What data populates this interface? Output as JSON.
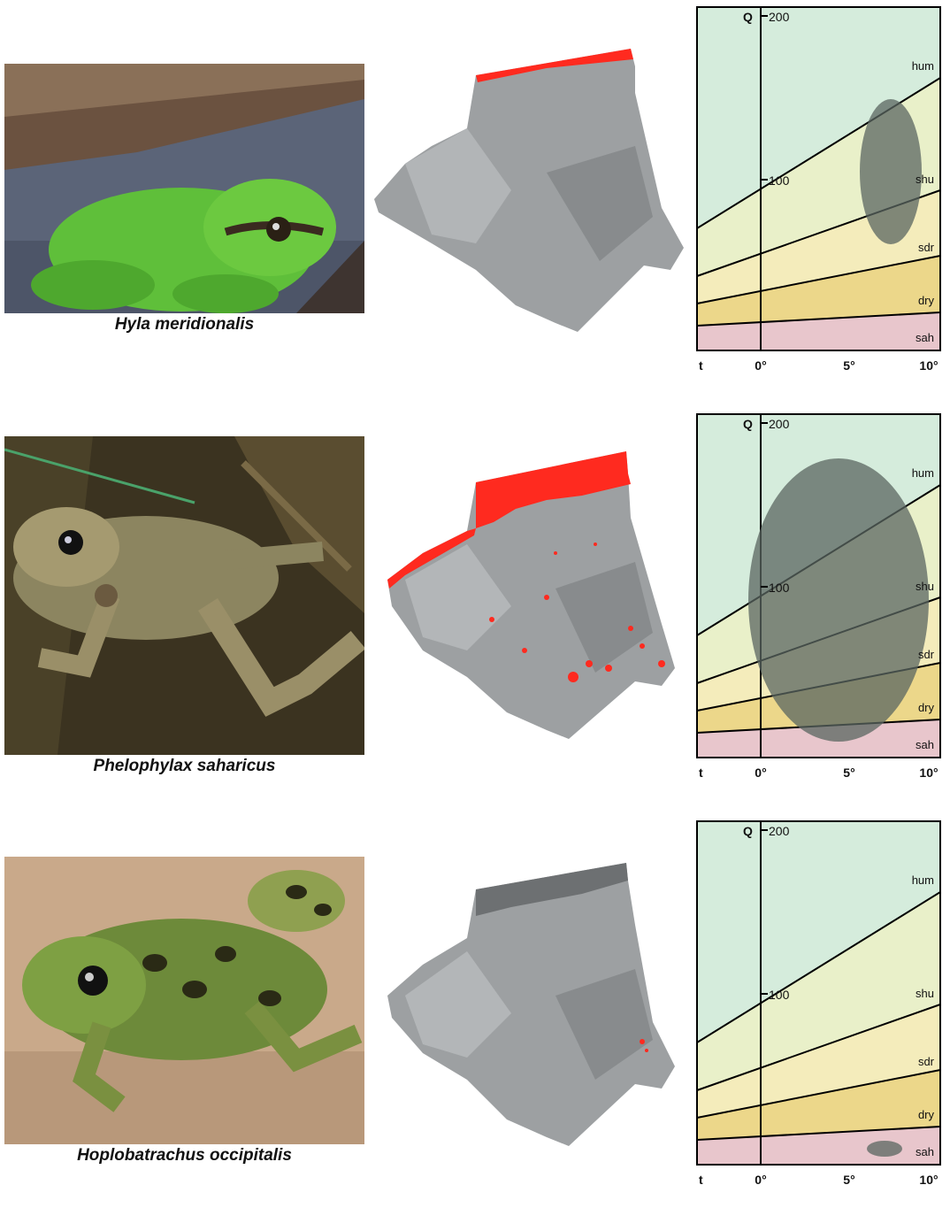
{
  "panels": [
    {
      "species": "Hyla meridionalis",
      "photo": {
        "subject": "green tree frog on stone with bark above",
        "colors": {
          "frog": "#5fbf3a",
          "ground": "#5b6478",
          "bark": "#6b5240"
        }
      },
      "map": {
        "presence": "northern coastal strip",
        "highlight_color": "#ff2a1f"
      },
      "climogram": {
        "niche_extent": "humid to sub-humid, mild to warm winters"
      }
    },
    {
      "species": "Phelophylax saharicus",
      "photo": {
        "subject": "brown-green water frog among reeds",
        "colors": {
          "frog": "#8c8560",
          "ground": "#3b3320"
        }
      },
      "map": {
        "presence": "north-east and north-west Tell plus scattered Saharan oases",
        "highlight_color": "#ff2a1f"
      },
      "climogram": {
        "niche_extent": "humid to saharan, broad temperature range"
      }
    },
    {
      "species": "Hoplobatrachus occipitalis",
      "photo": {
        "subject": "spotted frog on sandy mud",
        "colors": {
          "frog": "#6d8a3a",
          "ground": "#c9a98a"
        }
      },
      "map": {
        "presence": "few points in south-east",
        "highlight_color": "#ff2a1f"
      },
      "climogram": {
        "niche_extent": "saharan, warm winters"
      }
    }
  ],
  "climogram_labels": {
    "q_axis": "Q",
    "q_ticks": [
      "200",
      "100"
    ],
    "t_axis": "t",
    "t_ticks": [
      "0°",
      "5°",
      "10°"
    ],
    "zones": [
      "hum",
      "shu",
      "sdr",
      "dry",
      "sah"
    ]
  },
  "zone_colors": {
    "hum": "#d5ecdc",
    "shu": "#e9f0c9",
    "sdr": "#f4ecbb",
    "dry": "#ecd78a",
    "sah": "#e8c6cc",
    "ellipse": "#5a6660"
  }
}
